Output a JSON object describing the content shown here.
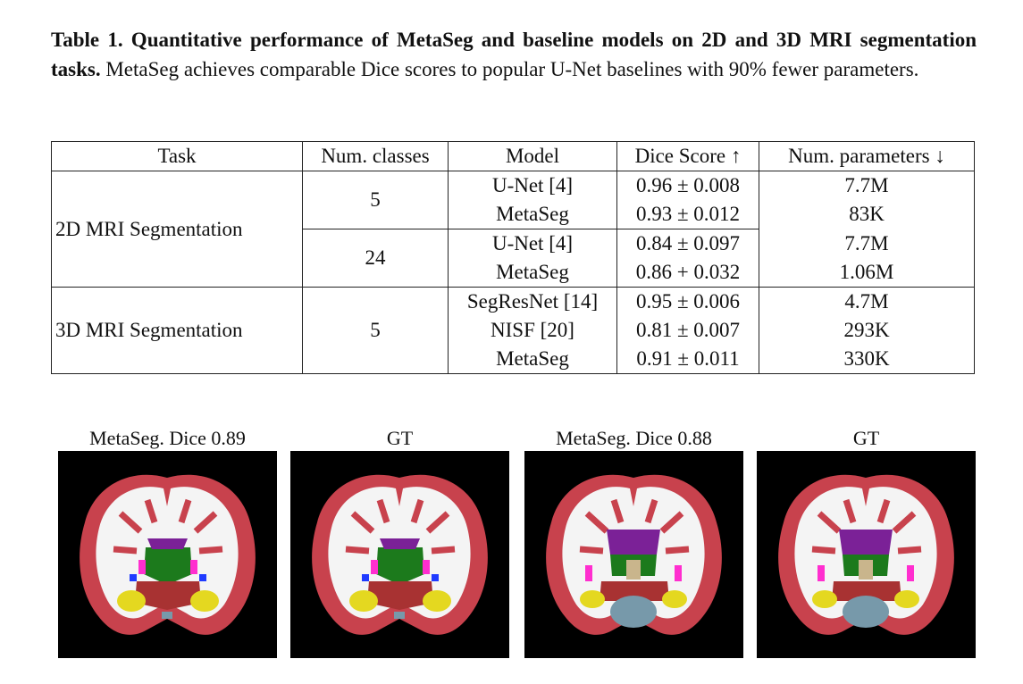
{
  "caption": {
    "label": "Table 1. Quantitative performance of MetaSeg and baseline models on 2D and 3D MRI segmentation tasks.",
    "text": "MetaSeg achieves comparable Dice scores to popular U-Net baselines with 90% fewer parameters."
  },
  "table": {
    "header": [
      "Task",
      "Num. classes",
      "Model",
      "Dice Score ↑",
      "Num. parameters ↓"
    ],
    "groups": [
      {
        "task": "2D MRI Segmentation",
        "subgroups": [
          {
            "classes": "5",
            "rows": [
              {
                "model": "U-Net [4]",
                "dice": "0.96 ± 0.008",
                "params": "7.7M"
              },
              {
                "model": "MetaSeg",
                "dice": "0.93 ± 0.012",
                "params": "83K"
              }
            ]
          },
          {
            "classes": "24",
            "rows": [
              {
                "model": "U-Net [4]",
                "dice": "0.84 ± 0.097",
                "params": "7.7M"
              },
              {
                "model": "MetaSeg",
                "dice": "0.86 + 0.032",
                "params": "1.06M"
              }
            ]
          }
        ]
      },
      {
        "task": "3D MRI Segmentation",
        "subgroups": [
          {
            "classes": "5",
            "rows": [
              {
                "model": "SegResNet [14]",
                "dice": "0.95 ± 0.006",
                "params": "4.7M"
              },
              {
                "model": "NISF [20]",
                "dice": "0.81 ± 0.007",
                "params": "293K"
              },
              {
                "model": "MetaSeg",
                "dice": "0.91 ± 0.011",
                "params": "330K"
              }
            ]
          }
        ]
      }
    ]
  },
  "figures": [
    {
      "label": "MetaSeg. Dice 0.89"
    },
    {
      "label": "GT"
    },
    {
      "label": "MetaSeg. Dice 0.88"
    },
    {
      "label": "GT"
    }
  ]
}
